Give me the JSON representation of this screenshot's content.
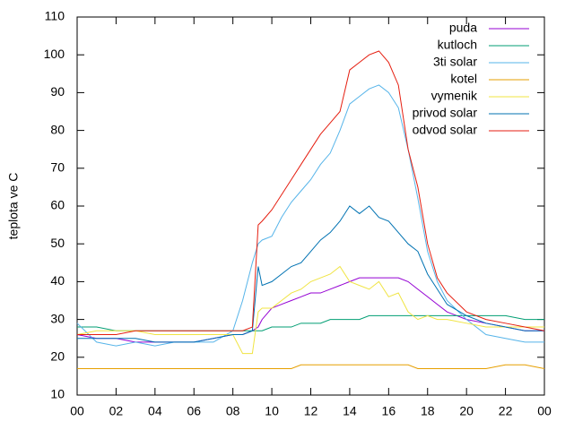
{
  "chart_data": {
    "type": "line",
    "ylabel": "teplota ve C",
    "x": [
      0,
      1,
      2,
      3,
      4,
      5,
      6,
      7,
      8,
      8.5,
      9,
      9.3,
      9.5,
      10,
      10.5,
      11,
      11.5,
      12,
      12.5,
      13,
      13.5,
      14,
      14.5,
      15,
      15.5,
      16,
      16.5,
      17,
      17.5,
      18,
      18.5,
      19,
      20,
      21,
      22,
      23,
      24
    ],
    "series": [
      {
        "name": "puda",
        "color": "#9400d3",
        "values": [
          26,
          25,
          25,
          24,
          24,
          24,
          24,
          25,
          26,
          26,
          27,
          28,
          30,
          33,
          34,
          35,
          36,
          37,
          37,
          38,
          39,
          40,
          41,
          41,
          41,
          41,
          41,
          40,
          38,
          36,
          34,
          32,
          30,
          29,
          28,
          27,
          27
        ]
      },
      {
        "name": "kutloch",
        "color": "#009e73",
        "values": [
          28,
          28,
          27,
          27,
          27,
          27,
          27,
          27,
          27,
          27,
          27,
          27,
          27,
          28,
          28,
          28,
          29,
          29,
          29,
          30,
          30,
          30,
          30,
          31,
          31,
          31,
          31,
          31,
          31,
          31,
          31,
          31,
          31,
          31,
          31,
          30,
          30
        ]
      },
      {
        "name": "3ti solar",
        "color": "#56b4e9",
        "values": [
          29,
          24,
          23,
          24,
          23,
          24,
          24,
          24,
          27,
          35,
          45,
          50,
          51,
          52,
          57,
          61,
          64,
          67,
          71,
          74,
          80,
          87,
          89,
          91,
          92,
          90,
          86,
          75,
          62,
          48,
          40,
          35,
          30,
          26,
          25,
          24,
          24
        ]
      },
      {
        "name": "kotel",
        "color": "#e69f00",
        "values": [
          17,
          17,
          17,
          17,
          17,
          17,
          17,
          17,
          17,
          17,
          17,
          17,
          17,
          17,
          17,
          17,
          18,
          18,
          18,
          18,
          18,
          18,
          18,
          18,
          18,
          18,
          18,
          18,
          17,
          17,
          17,
          17,
          17,
          17,
          18,
          18,
          17
        ]
      },
      {
        "name": "vymenik",
        "color": "#f0e442",
        "values": [
          26,
          27,
          27,
          27,
          26,
          26,
          26,
          26,
          26,
          21,
          21,
          32,
          33,
          33,
          35,
          37,
          38,
          40,
          41,
          42,
          44,
          40,
          39,
          38,
          40,
          36,
          37,
          32,
          30,
          31,
          30,
          30,
          29,
          28,
          28,
          28,
          28
        ]
      },
      {
        "name": "privod solar",
        "color": "#0072b2",
        "values": [
          25,
          25,
          25,
          25,
          24,
          24,
          24,
          25,
          26,
          26,
          27,
          44,
          39,
          40,
          42,
          44,
          45,
          48,
          51,
          53,
          56,
          60,
          58,
          60,
          57,
          56,
          53,
          50,
          48,
          42,
          38,
          34,
          31,
          29,
          28,
          27,
          27
        ]
      },
      {
        "name": "odvod solar",
        "color": "#e51e10",
        "values": [
          26,
          26,
          26,
          27,
          27,
          27,
          27,
          27,
          27,
          27,
          28,
          55,
          56,
          59,
          63,
          67,
          71,
          75,
          79,
          82,
          85,
          96,
          98,
          100,
          101,
          98,
          92,
          75,
          65,
          50,
          41,
          37,
          32,
          30,
          29,
          28,
          27
        ]
      }
    ],
    "xlim": [
      0,
      24
    ],
    "xticks": [
      {
        "value": 0,
        "label": "00"
      },
      {
        "value": 2,
        "label": "02"
      },
      {
        "value": 4,
        "label": "04"
      },
      {
        "value": 6,
        "label": "06"
      },
      {
        "value": 8,
        "label": "08"
      },
      10,
      12,
      14,
      16,
      18,
      20,
      22,
      {
        "value": 24,
        "label": "00"
      }
    ],
    "ylim": [
      10,
      110
    ],
    "yticks": [
      10,
      20,
      30,
      40,
      50,
      60,
      70,
      80,
      90,
      100,
      110
    ],
    "grid": false,
    "legend": "top-right"
  }
}
